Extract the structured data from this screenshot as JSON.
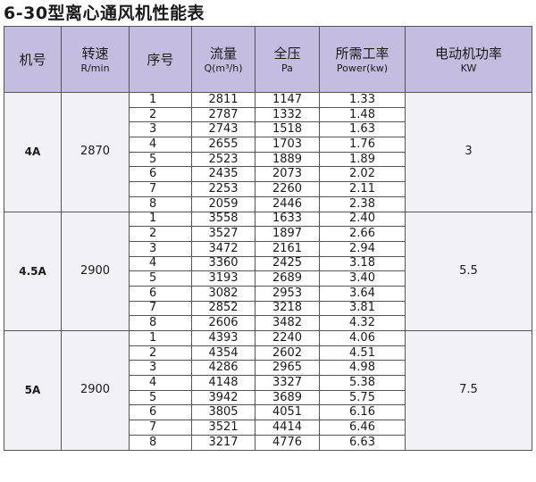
{
  "title": "6-30型离心通风机性能表",
  "headers": [
    {
      "main": "机号",
      "sub": ""
    },
    {
      "main": "转速",
      "sub": "R/min"
    },
    {
      "main": "序号",
      "sub": ""
    },
    {
      "main": "流量",
      "sub": "Q(m³/h)"
    },
    {
      "main": "全压",
      "sub": "Pa"
    },
    {
      "main": "所需工率",
      "sub": "Power(kw)"
    },
    {
      "main": "电动机功率",
      "sub": "KW"
    }
  ],
  "groups": [
    {
      "model": "4A",
      "speed": "2870",
      "motor_power": "3",
      "rows": [
        {
          "seq": "1",
          "flow": "2811",
          "pressure": "1147",
          "power": "1.33"
        },
        {
          "seq": "2",
          "flow": "2787",
          "pressure": "1332",
          "power": "1.48"
        },
        {
          "seq": "3",
          "flow": "2743",
          "pressure": "1518",
          "power": "1.63"
        },
        {
          "seq": "4",
          "flow": "2655",
          "pressure": "1703",
          "power": "1.76"
        },
        {
          "seq": "5",
          "flow": "2523",
          "pressure": "1889",
          "power": "1.89"
        },
        {
          "seq": "6",
          "flow": "2435",
          "pressure": "2073",
          "power": "2.02"
        },
        {
          "seq": "7",
          "flow": "2253",
          "pressure": "2260",
          "power": "2.11"
        },
        {
          "seq": "8",
          "flow": "2059",
          "pressure": "2446",
          "power": "2.38"
        }
      ]
    },
    {
      "model": "4.5A",
      "speed": "2900",
      "motor_power": "5.5",
      "rows": [
        {
          "seq": "1",
          "flow": "3558",
          "pressure": "1633",
          "power": "2.40"
        },
        {
          "seq": "2",
          "flow": "3527",
          "pressure": "1897",
          "power": "2.66"
        },
        {
          "seq": "3",
          "flow": "3472",
          "pressure": "2161",
          "power": "2.94"
        },
        {
          "seq": "4",
          "flow": "3360",
          "pressure": "2425",
          "power": "3.18"
        },
        {
          "seq": "5",
          "flow": "3193",
          "pressure": "2689",
          "power": "3.40"
        },
        {
          "seq": "6",
          "flow": "3082",
          "pressure": "2953",
          "power": "3.64"
        },
        {
          "seq": "7",
          "flow": "2852",
          "pressure": "3218",
          "power": "3.81"
        },
        {
          "seq": "8",
          "flow": "2606",
          "pressure": "3482",
          "power": "4.32"
        }
      ]
    },
    {
      "model": "5A",
      "speed": "2900",
      "motor_power": "7.5",
      "rows": [
        {
          "seq": "1",
          "flow": "4393",
          "pressure": "2240",
          "power": "4.06"
        },
        {
          "seq": "2",
          "flow": "4354",
          "pressure": "2602",
          "power": "4.51"
        },
        {
          "seq": "3",
          "flow": "4286",
          "pressure": "2965",
          "power": "4.98"
        },
        {
          "seq": "4",
          "flow": "4148",
          "pressure": "3327",
          "power": "5.38"
        },
        {
          "seq": "5",
          "flow": "3942",
          "pressure": "3689",
          "power": "5.75"
        },
        {
          "seq": "6",
          "flow": "3805",
          "pressure": "4051",
          "power": "6.16"
        },
        {
          "seq": "7",
          "flow": "3521",
          "pressure": "4414",
          "power": "6.46"
        },
        {
          "seq": "8",
          "flow": "3217",
          "pressure": "4776",
          "power": "6.63"
        }
      ]
    }
  ],
  "colors": {
    "header_bg": "#c4bddf",
    "group_bg": "#f3f1f8",
    "border": "#555555"
  }
}
